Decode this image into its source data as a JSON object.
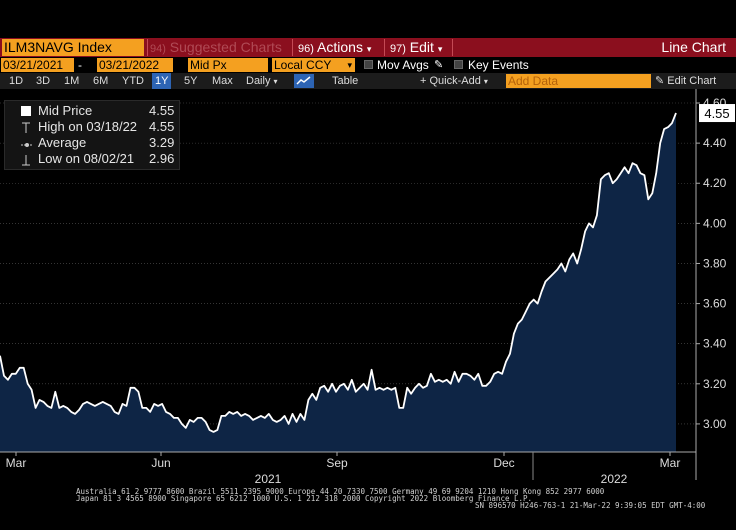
{
  "toolbar": {
    "ticker": "ILM3NAVG Index",
    "suggested_num": "94)",
    "suggested": "Suggested Charts",
    "actions_num": "96)",
    "actions": "Actions",
    "edit_num": "97)",
    "edit": "Edit",
    "chart_type": "Line Chart",
    "dropdown_glyph": "▾"
  },
  "controls": {
    "start_date": "03/21/2021",
    "dash": "-",
    "end_date": "03/21/2022",
    "field": "Mid Px",
    "currency": "Local CCY",
    "mov_avgs": "Mov Avgs",
    "key_events": "Key Events"
  },
  "ranges": {
    "items": [
      "1D",
      "3D",
      "1M",
      "6M",
      "YTD",
      "1Y",
      "5Y",
      "Max"
    ],
    "active": "1Y",
    "frequency": "Daily",
    "table": "Table",
    "quick_add": "+ Quick-Add",
    "add_data_placeholder": "Add Data",
    "edit_chart": "Edit Chart"
  },
  "legend": {
    "rows": [
      {
        "label": "Mid Price",
        "value": "4.55"
      },
      {
        "label": "High on 03/18/22",
        "value": "4.55"
      },
      {
        "label": "Average",
        "value": "3.29"
      },
      {
        "label": "Low on 08/02/21",
        "value": "2.96"
      }
    ]
  },
  "chart_data": {
    "type": "area",
    "series": [
      {
        "name": "Mid Price",
        "values": [
          3.34,
          3.24,
          3.22,
          3.25,
          3.25,
          3.28,
          3.28,
          3.2,
          3.17,
          3.08,
          3.12,
          3.11,
          3.09,
          3.08,
          3.16,
          3.08,
          3.09,
          3.08,
          3.06,
          3.05,
          3.07,
          3.1,
          3.11,
          3.1,
          3.09,
          3.1,
          3.11,
          3.1,
          3.09,
          3.06,
          3.05,
          3.1,
          3.09,
          3.18,
          3.18,
          3.16,
          3.08,
          3.08,
          3.06,
          3.1,
          3.09,
          3.1,
          3.06,
          3.05,
          3.03,
          3.03,
          3.0,
          2.98,
          3.02,
          3.01,
          3.03,
          3.03,
          3.01,
          2.97,
          2.96,
          2.97,
          3.04,
          3.04,
          3.06,
          3.05,
          3.06,
          3.04,
          3.05,
          3.04,
          3.02,
          3.03,
          3.04,
          3.03,
          3.05,
          3.02,
          3.01,
          3.02,
          3.04,
          3.0,
          3.05,
          3.01,
          3.05,
          3.02,
          3.12,
          3.15,
          3.12,
          3.18,
          3.19,
          3.16,
          3.2,
          3.16,
          3.19,
          3.2,
          3.17,
          3.22,
          3.16,
          3.18,
          3.2,
          3.17,
          3.27,
          3.17,
          3.18,
          3.17,
          3.18,
          3.17,
          3.18,
          3.08,
          3.08,
          3.18,
          3.15,
          3.18,
          3.2,
          3.18,
          3.19,
          3.25,
          3.21,
          3.22,
          3.21,
          3.22,
          3.2,
          3.26,
          3.21,
          3.25,
          3.25,
          3.24,
          3.22,
          3.25,
          3.19,
          3.19,
          3.21,
          3.25,
          3.26,
          3.25,
          3.31,
          3.35,
          3.45,
          3.5,
          3.52,
          3.56,
          3.6,
          3.62,
          3.6,
          3.66,
          3.71,
          3.73,
          3.75,
          3.77,
          3.8,
          3.76,
          3.82,
          3.85,
          3.8,
          3.87,
          3.96,
          4.0,
          3.98,
          4.04,
          4.22,
          4.24,
          4.25,
          4.2,
          4.22,
          4.25,
          4.28,
          4.25,
          4.3,
          4.29,
          4.25,
          4.24,
          4.12,
          4.15,
          4.25,
          4.4,
          4.47,
          4.48,
          4.5,
          4.55
        ]
      }
    ],
    "x_labels": [
      "Mar",
      "Jun",
      "Sep",
      "Dec",
      "Mar"
    ],
    "year_labels": [
      "2021",
      "2022"
    ],
    "y_ticks": [
      3.0,
      3.2,
      3.4,
      3.6,
      3.8,
      4.0,
      4.2,
      4.4,
      4.6
    ],
    "y_tick_labels": [
      "3.00",
      "3.20",
      "3.40",
      "3.60",
      "3.80",
      "4.00",
      "4.20",
      "4.40",
      "4.60"
    ],
    "ylim": [
      2.86,
      4.62
    ],
    "last_value_label": "4.55",
    "colors": {
      "line": "#ffffff",
      "fill": "#0e2545",
      "grid": "#555555"
    }
  },
  "footer": {
    "line1": "Australia 61 2 9777 8600 Brazil 5511 2395 9000 Europe 44 20 7330 7500 Germany 49 69 9204 1210 Hong Kong 852 2977 6000",
    "line2": "Japan 81 3 4565 8900      Singapore 65 6212 1000      U.S. 1 212 318 2000       Copyright 2022 Bloomberg Finance L.P.",
    "line3": "SN 896570 H246-763-1 21-Mar-22  9:39:05 EDT  GMT-4:00"
  }
}
